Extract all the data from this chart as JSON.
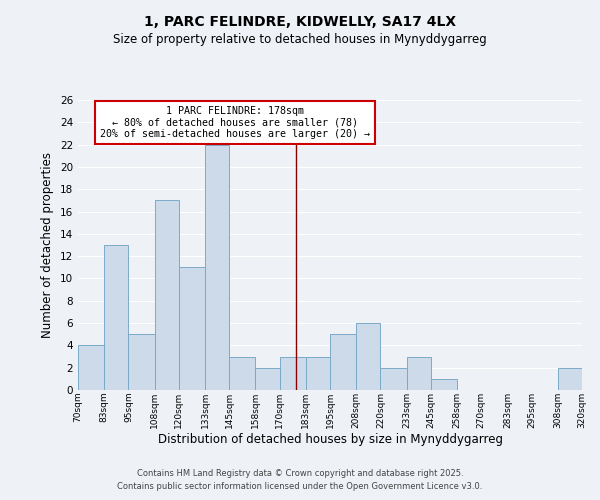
{
  "title": "1, PARC FELINDRE, KIDWELLY, SA17 4LX",
  "subtitle": "Size of property relative to detached houses in Mynyddygarreg",
  "xlabel": "Distribution of detached houses by size in Mynyddygarreg",
  "ylabel": "Number of detached properties",
  "bar_color": "#cddaea",
  "bar_edge_color": "#7aaac8",
  "background_color": "#eef2f7",
  "grid_color": "#ffffff",
  "vline_x": 178,
  "vline_color": "#8b0000",
  "bin_edges": [
    70,
    83,
    95,
    108,
    120,
    133,
    145,
    158,
    170,
    183,
    195,
    208,
    220,
    233,
    245,
    258,
    270,
    283,
    295,
    308,
    320
  ],
  "bin_labels": [
    "70sqm",
    "83sqm",
    "95sqm",
    "108sqm",
    "120sqm",
    "133sqm",
    "145sqm",
    "158sqm",
    "170sqm",
    "183sqm",
    "195sqm",
    "208sqm",
    "220sqm",
    "233sqm",
    "245sqm",
    "258sqm",
    "270sqm",
    "283sqm",
    "295sqm",
    "308sqm",
    "320sqm"
  ],
  "counts": [
    4,
    13,
    5,
    17,
    11,
    22,
    3,
    2,
    3,
    3,
    5,
    6,
    2,
    3,
    1,
    0,
    0,
    0,
    0,
    2
  ],
  "ylim": [
    0,
    26
  ],
  "yticks": [
    0,
    2,
    4,
    6,
    8,
    10,
    12,
    14,
    16,
    18,
    20,
    22,
    24,
    26
  ],
  "annotation_title": "1 PARC FELINDRE: 178sqm",
  "annotation_line1": "← 80% of detached houses are smaller (78)",
  "annotation_line2": "20% of semi-detached houses are larger (20) →",
  "annotation_box_color": "#ffffff",
  "annotation_box_edge": "#cc0000",
  "footer1": "Contains HM Land Registry data © Crown copyright and database right 2025.",
  "footer2": "Contains public sector information licensed under the Open Government Licence v3.0."
}
